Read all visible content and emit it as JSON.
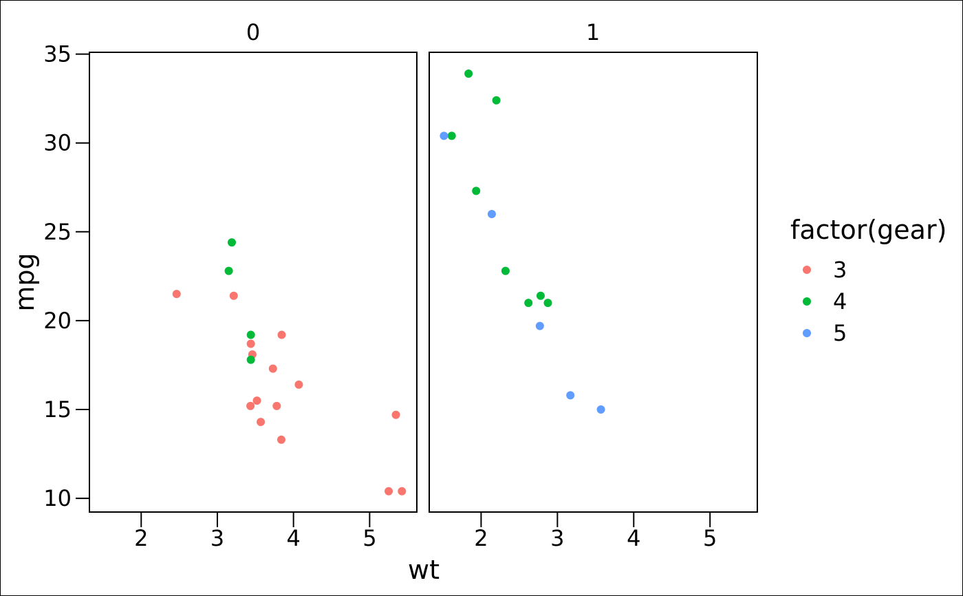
{
  "chart_data": {
    "type": "scatter",
    "facet_by": "am",
    "panels": [
      {
        "label": "0",
        "points": [
          {
            "x": 2.465,
            "y": 21.5,
            "gear": "3"
          },
          {
            "x": 3.215,
            "y": 21.4,
            "gear": "3"
          },
          {
            "x": 3.44,
            "y": 18.7,
            "gear": "3"
          },
          {
            "x": 3.46,
            "y": 18.1,
            "gear": "3"
          },
          {
            "x": 3.57,
            "y": 14.3,
            "gear": "3"
          },
          {
            "x": 4.07,
            "y": 16.4,
            "gear": "3"
          },
          {
            "x": 3.73,
            "y": 17.3,
            "gear": "3"
          },
          {
            "x": 3.78,
            "y": 15.2,
            "gear": "3"
          },
          {
            "x": 5.25,
            "y": 10.4,
            "gear": "3"
          },
          {
            "x": 5.424,
            "y": 10.4,
            "gear": "3"
          },
          {
            "x": 5.345,
            "y": 14.7,
            "gear": "3"
          },
          {
            "x": 3.52,
            "y": 15.5,
            "gear": "3"
          },
          {
            "x": 3.435,
            "y": 15.2,
            "gear": "3"
          },
          {
            "x": 3.84,
            "y": 13.3,
            "gear": "3"
          },
          {
            "x": 3.845,
            "y": 19.2,
            "gear": "3"
          },
          {
            "x": 3.19,
            "y": 24.4,
            "gear": "4"
          },
          {
            "x": 3.15,
            "y": 22.8,
            "gear": "4"
          },
          {
            "x": 3.44,
            "y": 19.2,
            "gear": "4"
          },
          {
            "x": 3.44,
            "y": 17.8,
            "gear": "4"
          }
        ]
      },
      {
        "label": "1",
        "points": [
          {
            "x": 2.62,
            "y": 21.0,
            "gear": "4"
          },
          {
            "x": 2.875,
            "y": 21.0,
            "gear": "4"
          },
          {
            "x": 2.32,
            "y": 22.8,
            "gear": "4"
          },
          {
            "x": 2.2,
            "y": 32.4,
            "gear": "4"
          },
          {
            "x": 1.615,
            "y": 30.4,
            "gear": "4"
          },
          {
            "x": 1.835,
            "y": 33.9,
            "gear": "4"
          },
          {
            "x": 1.935,
            "y": 27.3,
            "gear": "4"
          },
          {
            "x": 2.78,
            "y": 21.4,
            "gear": "4"
          },
          {
            "x": 2.14,
            "y": 26.0,
            "gear": "5"
          },
          {
            "x": 1.513,
            "y": 30.4,
            "gear": "5"
          },
          {
            "x": 3.17,
            "y": 15.8,
            "gear": "5"
          },
          {
            "x": 2.77,
            "y": 19.7,
            "gear": "5"
          },
          {
            "x": 3.57,
            "y": 15.0,
            "gear": "5"
          }
        ]
      }
    ],
    "xlabel": "wt",
    "ylabel": "mpg",
    "xlim": [
      1.32,
      5.62
    ],
    "ylim": [
      9.23,
      35.1
    ],
    "xticks": [
      2,
      3,
      4,
      5
    ],
    "yticks": [
      10,
      15,
      20,
      25,
      30,
      35
    ],
    "grid": false,
    "legend": {
      "title": "factor(gear)",
      "placement": "right",
      "entries": [
        {
          "label": "3",
          "color": "#F8766D"
        },
        {
          "label": "4",
          "color": "#00BA38"
        },
        {
          "label": "5",
          "color": "#619CFF"
        }
      ]
    }
  }
}
